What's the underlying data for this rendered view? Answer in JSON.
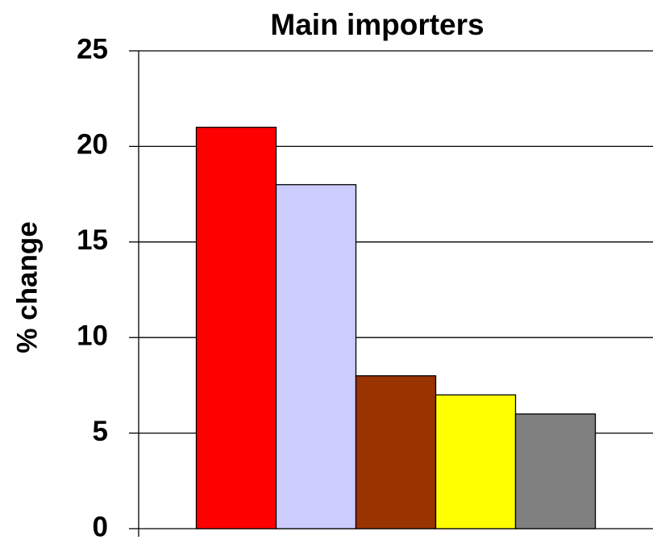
{
  "chart_data": {
    "type": "bar",
    "title": "Main importers",
    "ylabel": "% change",
    "categories": [
      null,
      null,
      null,
      null,
      null
    ],
    "values": [
      21,
      18,
      8,
      7,
      6
    ],
    "colors": [
      "#ff0000",
      "#ccccff",
      "#993300",
      "#ffff00",
      "#808080"
    ],
    "ylim": [
      0,
      25
    ],
    "yticks": [
      0,
      5,
      10,
      15,
      20,
      25
    ],
    "grid": true
  }
}
